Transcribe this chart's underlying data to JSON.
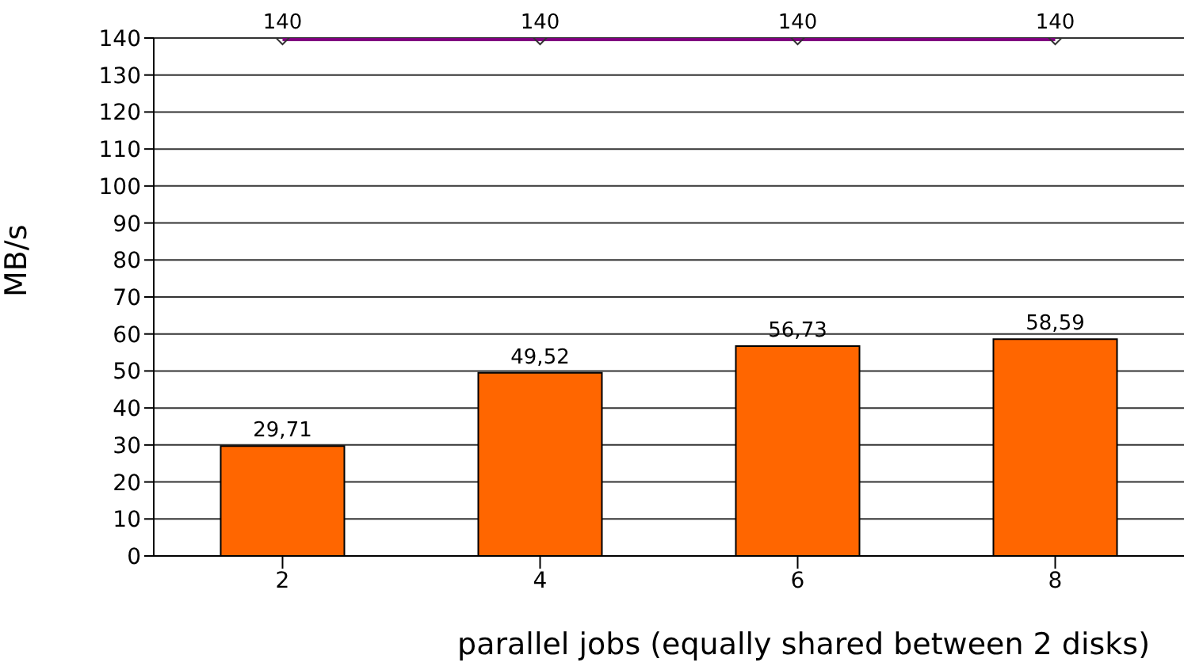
{
  "chart_data": {
    "type": "bar",
    "xlabel": "parallel jobs (equally shared between 2 disks)",
    "ylabel": "MB/s",
    "categories": [
      "2",
      "4",
      "6",
      "8"
    ],
    "series": [
      {
        "color": "#ff6600",
        "values": [
          29.71,
          49.52,
          56.73,
          58.59
        ],
        "value_labels": [
          "29,71",
          "49,52",
          "56,73",
          "58,59"
        ]
      },
      {
        "type": "line",
        "color": "#800080",
        "values": [
          140,
          140,
          140,
          140
        ],
        "value_labels": [
          "140",
          "140",
          "140",
          "140"
        ],
        "marker": "diamond"
      }
    ],
    "ylim": [
      0,
      140
    ],
    "yticks": [
      0,
      10,
      20,
      30,
      40,
      50,
      60,
      70,
      80,
      90,
      100,
      110,
      120,
      130,
      140
    ],
    "grid": "y",
    "legend": false
  }
}
